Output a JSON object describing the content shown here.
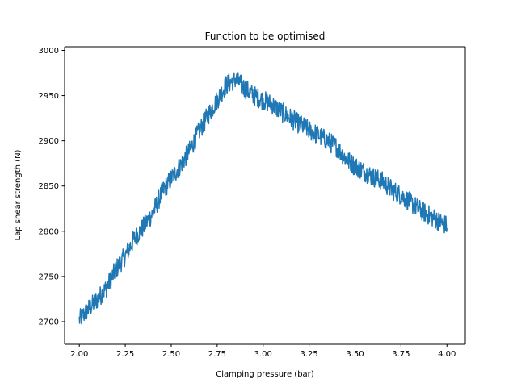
{
  "chart_data": {
    "type": "line",
    "title": "Function to be optimised",
    "xlabel": "Clamping pressure (bar)",
    "ylabel": "Lap shear strength (N)",
    "xlim": [
      1.92,
      4.1
    ],
    "ylim": [
      2675,
      3004
    ],
    "xticks": [
      2.0,
      2.25,
      2.5,
      2.75,
      3.0,
      3.25,
      3.5,
      3.75,
      4.0
    ],
    "xtick_labels": [
      "2.00",
      "2.25",
      "2.50",
      "2.75",
      "3.00",
      "3.25",
      "3.50",
      "3.75",
      "4.00"
    ],
    "yticks": [
      2700,
      2750,
      2800,
      2850,
      2900,
      2950,
      3000
    ],
    "ytick_labels": [
      "2700",
      "2750",
      "2800",
      "2850",
      "2900",
      "2950",
      "3000"
    ],
    "grid": false,
    "legend": "none",
    "series": [
      {
        "color": "#1f77b4",
        "x": [
          2.0,
          2.05,
          2.1,
          2.15,
          2.2,
          2.25,
          2.3,
          2.35,
          2.4,
          2.45,
          2.5,
          2.55,
          2.6,
          2.65,
          2.7,
          2.75,
          2.8,
          2.85,
          2.9,
          2.95,
          3.0,
          3.05,
          3.1,
          3.15,
          3.2,
          3.25,
          3.3,
          3.35,
          3.4,
          3.45,
          3.5,
          3.55,
          3.6,
          3.65,
          3.7,
          3.75,
          3.8,
          3.85,
          3.9,
          3.95,
          4.0
        ],
        "y": [
          2702,
          2714,
          2725,
          2738,
          2758,
          2773,
          2792,
          2805,
          2820,
          2843,
          2858,
          2873,
          2889,
          2910,
          2928,
          2945,
          2962,
          2968,
          2958,
          2950,
          2945,
          2940,
          2932,
          2925,
          2918,
          2912,
          2906,
          2900,
          2893,
          2880,
          2872,
          2866,
          2860,
          2855,
          2846,
          2840,
          2832,
          2824,
          2818,
          2812,
          2806
        ]
      }
    ]
  }
}
